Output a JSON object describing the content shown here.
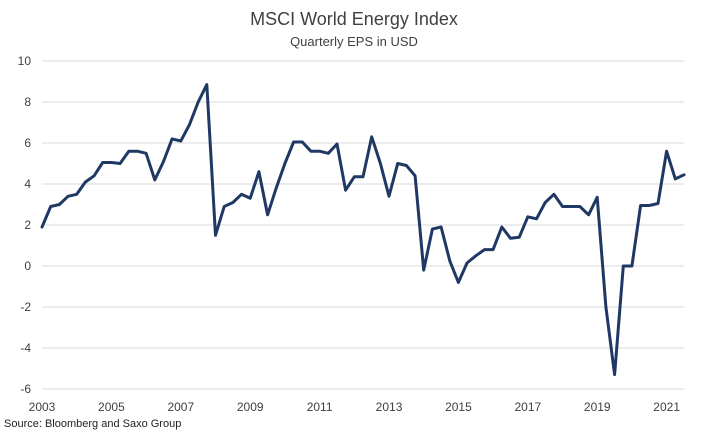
{
  "chart_data": {
    "type": "line",
    "title": "MSCI World Energy Index",
    "subtitle": "Quarterly EPS in USD",
    "source": "Source: Bloomberg and Saxo Group",
    "xlabel": "",
    "ylabel": "",
    "ylim": [
      -6,
      10
    ],
    "yticks": [
      10,
      8,
      6,
      4,
      2,
      0,
      -2,
      -4,
      -6
    ],
    "xlim": [
      2003,
      2021.5
    ],
    "xticks": [
      "2003",
      "2005",
      "2007",
      "2009",
      "2011",
      "2013",
      "2015",
      "2017",
      "2019",
      "2021"
    ],
    "grid": true,
    "legend": "none",
    "colors": {
      "line": "#1f3864",
      "grid": "#d9d9d9",
      "text": "#404040"
    },
    "series": [
      {
        "x": [
          2003.0,
          2003.25,
          2003.5,
          2003.75,
          2004.0,
          2004.25,
          2004.5,
          2004.75,
          2005.0,
          2005.25,
          2005.5,
          2005.75,
          2006.0,
          2006.25,
          2006.5,
          2006.75,
          2007.0,
          2007.25,
          2007.5,
          2007.75,
          2008.0,
          2008.25,
          2008.5,
          2008.75,
          2009.0,
          2009.25,
          2009.5,
          2009.75,
          2010.0,
          2010.25,
          2010.5,
          2010.75,
          2011.0,
          2011.25,
          2011.5,
          2011.75,
          2012.0,
          2012.25,
          2012.5,
          2012.75,
          2013.0,
          2013.25,
          2013.5,
          2013.75,
          2014.0,
          2014.25,
          2014.5,
          2014.75,
          2015.0,
          2015.25,
          2015.5,
          2015.75,
          2016.0,
          2016.25,
          2016.5,
          2016.75,
          2017.0,
          2017.25,
          2017.5,
          2017.75,
          2018.0,
          2018.25,
          2018.5,
          2018.75,
          2019.0,
          2019.25,
          2019.5,
          2019.75,
          2020.0,
          2020.25,
          2020.5,
          2020.75,
          2021.0,
          2021.25,
          2021.5
        ],
        "values": [
          1.9,
          2.9,
          3.0,
          3.4,
          3.5,
          4.1,
          4.4,
          5.05,
          5.05,
          5.0,
          5.6,
          5.6,
          5.5,
          4.2,
          5.1,
          6.2,
          6.1,
          6.9,
          8.0,
          8.85,
          1.5,
          2.9,
          3.1,
          3.5,
          3.3,
          4.6,
          2.5,
          3.8,
          5.0,
          6.05,
          6.05,
          5.6,
          5.6,
          5.5,
          5.95,
          3.7,
          4.35,
          4.35,
          6.3,
          5.0,
          3.4,
          5.0,
          4.9,
          4.4,
          -0.2,
          1.8,
          1.9,
          0.25,
          -0.8,
          0.15,
          0.5,
          0.8,
          0.8,
          1.9,
          1.35,
          1.4,
          2.4,
          2.3,
          3.1,
          3.5,
          2.9,
          2.9,
          2.9,
          2.5,
          3.35,
          -2.0,
          -5.3,
          0.0,
          0.0,
          2.95,
          2.95,
          3.05,
          5.6,
          4.25,
          4.45
        ]
      }
    ]
  }
}
